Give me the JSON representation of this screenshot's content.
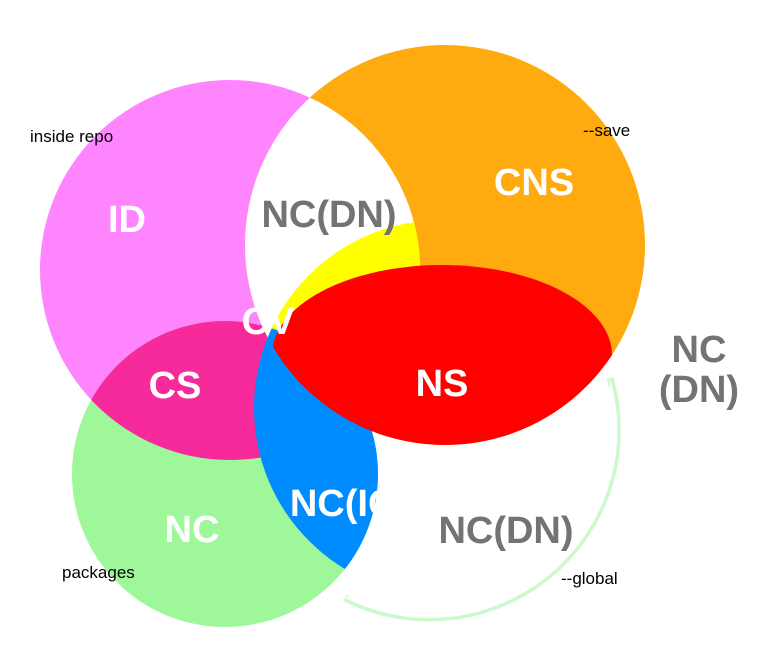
{
  "diagram": {
    "circle_labels": {
      "inside_repo": "inside repo",
      "save": "--save",
      "packages": "packages",
      "global": "--global"
    },
    "regions": {
      "id": "ID",
      "cns": "CNS",
      "nc_dn_top": "NC(DN)",
      "cv": "CV",
      "cs": "CS",
      "ns": "NS",
      "nc_bottom": "NC",
      "nc_ig": "NC(IG)",
      "nc_dn_bottom": "NC(DN)"
    },
    "outside": {
      "line1": "NC",
      "line2": "(DN)"
    },
    "colors": {
      "inside_repo": "#ff85ff",
      "save": "#ffab10",
      "packages": "#9ef799",
      "global_outline": "#ccf9cc",
      "cv": "#ffff00",
      "cs": "#f72a9c",
      "ns": "#ff0000",
      "nc_ig": "#008cff",
      "text_white": "#ffffff",
      "text_gray": "#737373"
    }
  }
}
